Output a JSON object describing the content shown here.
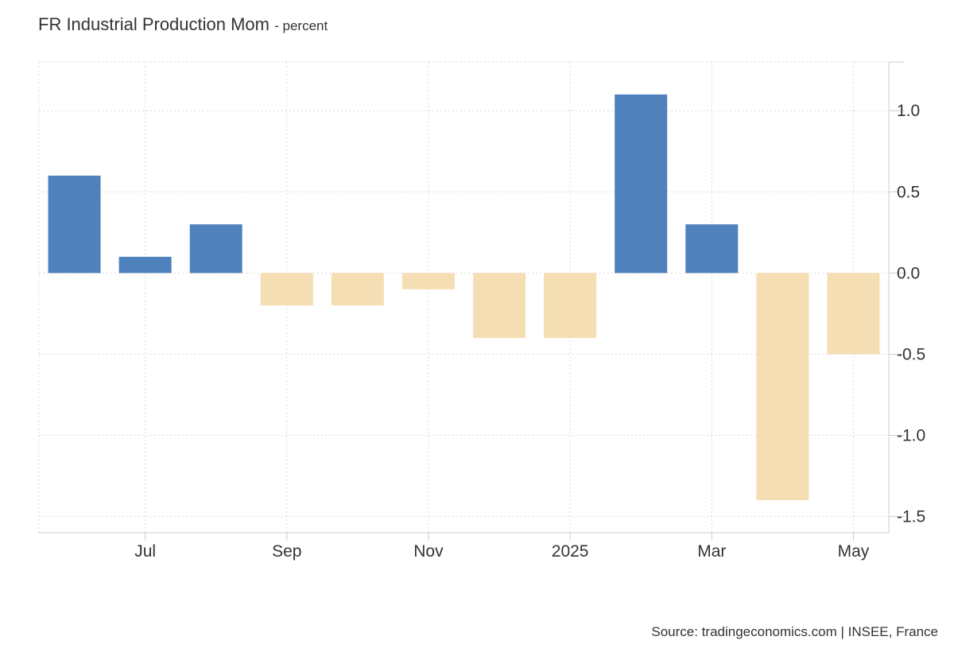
{
  "title": "FR Industrial Production Mom",
  "unit_suffix": "- percent",
  "source": "Source: tradingeconomics.com | INSEE, France",
  "colors": {
    "positive": "#4f81bd",
    "negative": "#f5deb3",
    "grid": "#d9d9d9",
    "axis": "#cccccc",
    "text": "#333333"
  },
  "chart_data": {
    "type": "bar",
    "categories": [
      "Jun 2024",
      "Jul 2024",
      "Aug 2024",
      "Sep 2024",
      "Oct 2024",
      "Nov 2024",
      "Dec 2024",
      "Jan 2025",
      "Feb 2025",
      "Mar 2025",
      "Apr 2025",
      "May 2025"
    ],
    "values": [
      0.6,
      0.1,
      0.3,
      -0.2,
      -0.2,
      -0.1,
      -0.4,
      -0.4,
      1.1,
      0.3,
      -1.4,
      -0.5
    ],
    "x_tick_labels": [
      "Jul",
      "Sep",
      "Nov",
      "2025",
      "Mar",
      "May"
    ],
    "x_tick_categories": [
      "Jul 2024",
      "Sep 2024",
      "Nov 2024",
      "Jan 2025",
      "Mar 2025",
      "May 2025"
    ],
    "y_ticks": [
      1.0,
      0.5,
      0.0,
      -0.5,
      -1.0,
      -1.5
    ],
    "y_tick_labels": [
      "1.0",
      "0.5",
      "0.0",
      "-0.5",
      "-1.0",
      "-1.5"
    ],
    "ylim": [
      -1.6,
      1.3
    ],
    "y_axis_side": "right",
    "grid": true,
    "legend": false
  }
}
